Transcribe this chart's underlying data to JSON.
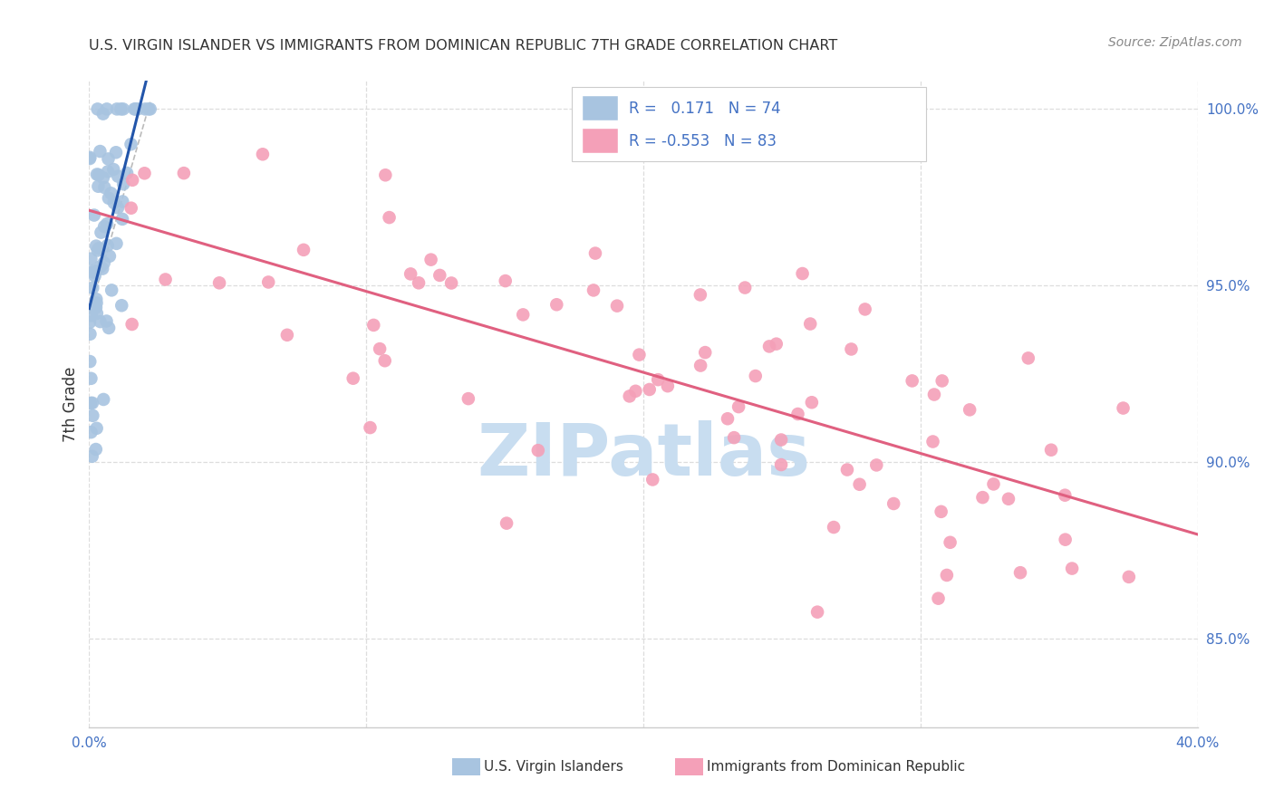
{
  "title": "U.S. VIRGIN ISLANDER VS IMMIGRANTS FROM DOMINICAN REPUBLIC 7TH GRADE CORRELATION CHART",
  "source": "Source: ZipAtlas.com",
  "ylabel": "7th Grade",
  "legend_blue_label": "U.S. Virgin Islanders",
  "legend_pink_label": "Immigrants from Dominican Republic",
  "r_blue": 0.171,
  "n_blue": 74,
  "r_pink": -0.553,
  "n_pink": 83,
  "blue_color": "#a8c4e0",
  "pink_color": "#f4a0b8",
  "blue_line_color": "#2255aa",
  "pink_line_color": "#e06080",
  "watermark": "ZIPatlas",
  "watermark_color": "#c8ddf0",
  "background_color": "#ffffff",
  "xlim": [
    0.0,
    0.4
  ],
  "ylim": [
    0.825,
    1.008
  ],
  "ytick_vals": [
    0.85,
    0.9,
    0.95,
    1.0
  ],
  "ytick_labels": [
    "85.0%",
    "90.0%",
    "95.0%",
    "100.0%"
  ],
  "xtick_vals": [
    0.0,
    0.1,
    0.2,
    0.3,
    0.4
  ],
  "grid_color": "#dddddd",
  "axis_color": "#cccccc",
  "title_color": "#333333",
  "source_color": "#888888",
  "label_color": "#333333",
  "right_tick_color": "#4472c4",
  "bottom_label_color": "#4472c4"
}
